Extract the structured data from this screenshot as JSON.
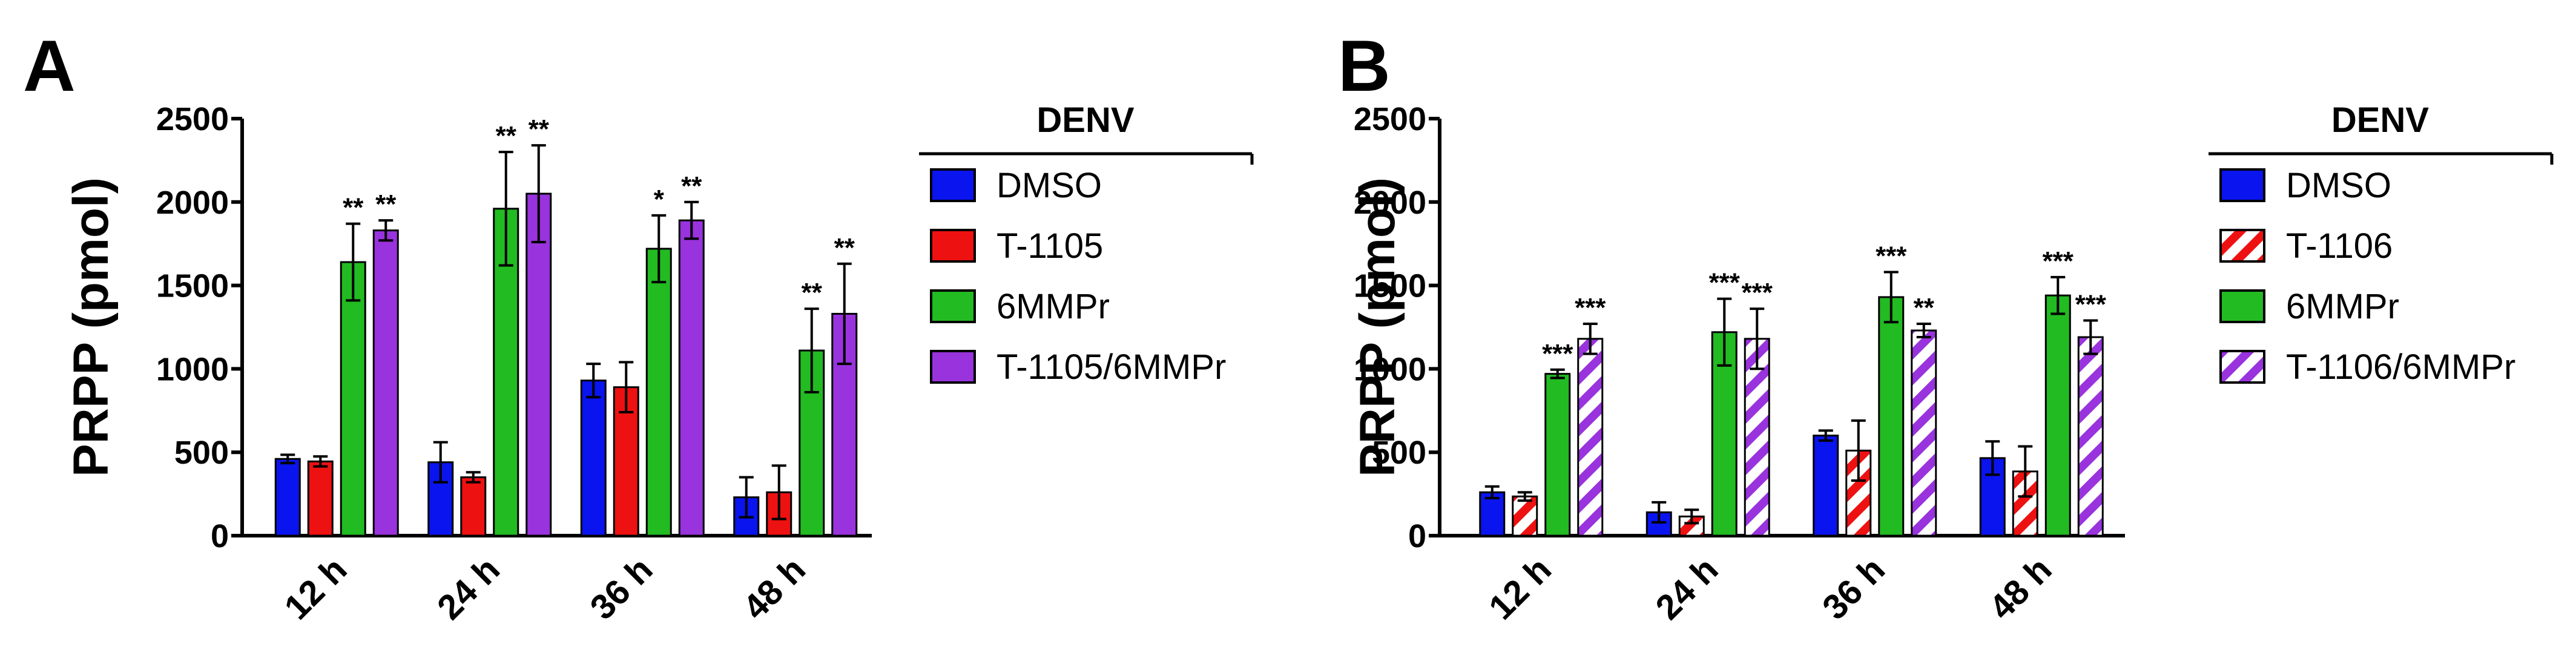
{
  "figure": {
    "colors": {
      "dmso": "#0a14ee",
      "t1105": "#ee1111",
      "t1106": "#ee1111",
      "mmpr": "#22bb22",
      "combo": "#9933dd",
      "axis": "#000000"
    }
  },
  "chart_data": [
    {
      "panel": "A",
      "type": "bar",
      "ylabel": "PRPP (pmol)",
      "xlabel": "",
      "ylim": [
        0,
        2500
      ],
      "yticks": [
        0,
        500,
        1000,
        1500,
        2000,
        2500
      ],
      "categories": [
        "12 h",
        "24 h",
        "36 h",
        "48 h"
      ],
      "legend": {
        "title": "DENV",
        "placement": "right"
      },
      "series": [
        {
          "name": "DMSO",
          "color": "#0a14ee",
          "pattern": "solid",
          "values": [
            460,
            440,
            930,
            230
          ],
          "errors": [
            25,
            120,
            100,
            120
          ],
          "sig": [
            "",
            "",
            "",
            ""
          ]
        },
        {
          "name": "T-1105",
          "color": "#ee1111",
          "pattern": "solid",
          "values": [
            445,
            350,
            890,
            260
          ],
          "errors": [
            30,
            30,
            150,
            160
          ],
          "sig": [
            "",
            "",
            "",
            ""
          ]
        },
        {
          "name": "6MMPr",
          "color": "#22bb22",
          "pattern": "solid",
          "values": [
            1640,
            1960,
            1720,
            1110
          ],
          "errors": [
            230,
            340,
            200,
            250
          ],
          "sig": [
            "**",
            "**",
            "*",
            "**"
          ]
        },
        {
          "name": "T-1105/6MMPr",
          "color": "#9933dd",
          "pattern": "solid",
          "values": [
            1830,
            2050,
            1890,
            1330
          ],
          "errors": [
            60,
            290,
            110,
            300
          ],
          "sig": [
            "**",
            "**",
            "**",
            "**"
          ]
        }
      ]
    },
    {
      "panel": "B",
      "type": "bar",
      "ylabel": "PRPP (pmol)",
      "xlabel": "",
      "ylim": [
        0,
        2500
      ],
      "yticks": [
        0,
        500,
        1000,
        1500,
        2000,
        2500
      ],
      "categories": [
        "12 h",
        "24 h",
        "36 h",
        "48 h"
      ],
      "legend": {
        "title": "DENV",
        "placement": "right"
      },
      "series": [
        {
          "name": "DMSO",
          "color": "#0a14ee",
          "pattern": "solid",
          "values": [
            260,
            140,
            600,
            465
          ],
          "errors": [
            35,
            60,
            30,
            100
          ],
          "sig": [
            "",
            "",
            "",
            ""
          ]
        },
        {
          "name": "T-1106",
          "color": "#ee1111",
          "pattern": "hatch",
          "values": [
            235,
            115,
            510,
            385
          ],
          "errors": [
            25,
            40,
            180,
            150
          ],
          "sig": [
            "",
            "",
            "",
            ""
          ]
        },
        {
          "name": "6MMPr",
          "color": "#22bb22",
          "pattern": "solid",
          "values": [
            970,
            1220,
            1430,
            1440
          ],
          "errors": [
            25,
            200,
            150,
            110
          ],
          "sig": [
            "***",
            "***",
            "***",
            "***"
          ]
        },
        {
          "name": "T-1106/6MMPr",
          "color": "#9933dd",
          "pattern": "hatch",
          "values": [
            1180,
            1180,
            1230,
            1190
          ],
          "errors": [
            90,
            180,
            40,
            100
          ],
          "sig": [
            "***",
            "***",
            "**",
            "***"
          ]
        }
      ]
    }
  ]
}
